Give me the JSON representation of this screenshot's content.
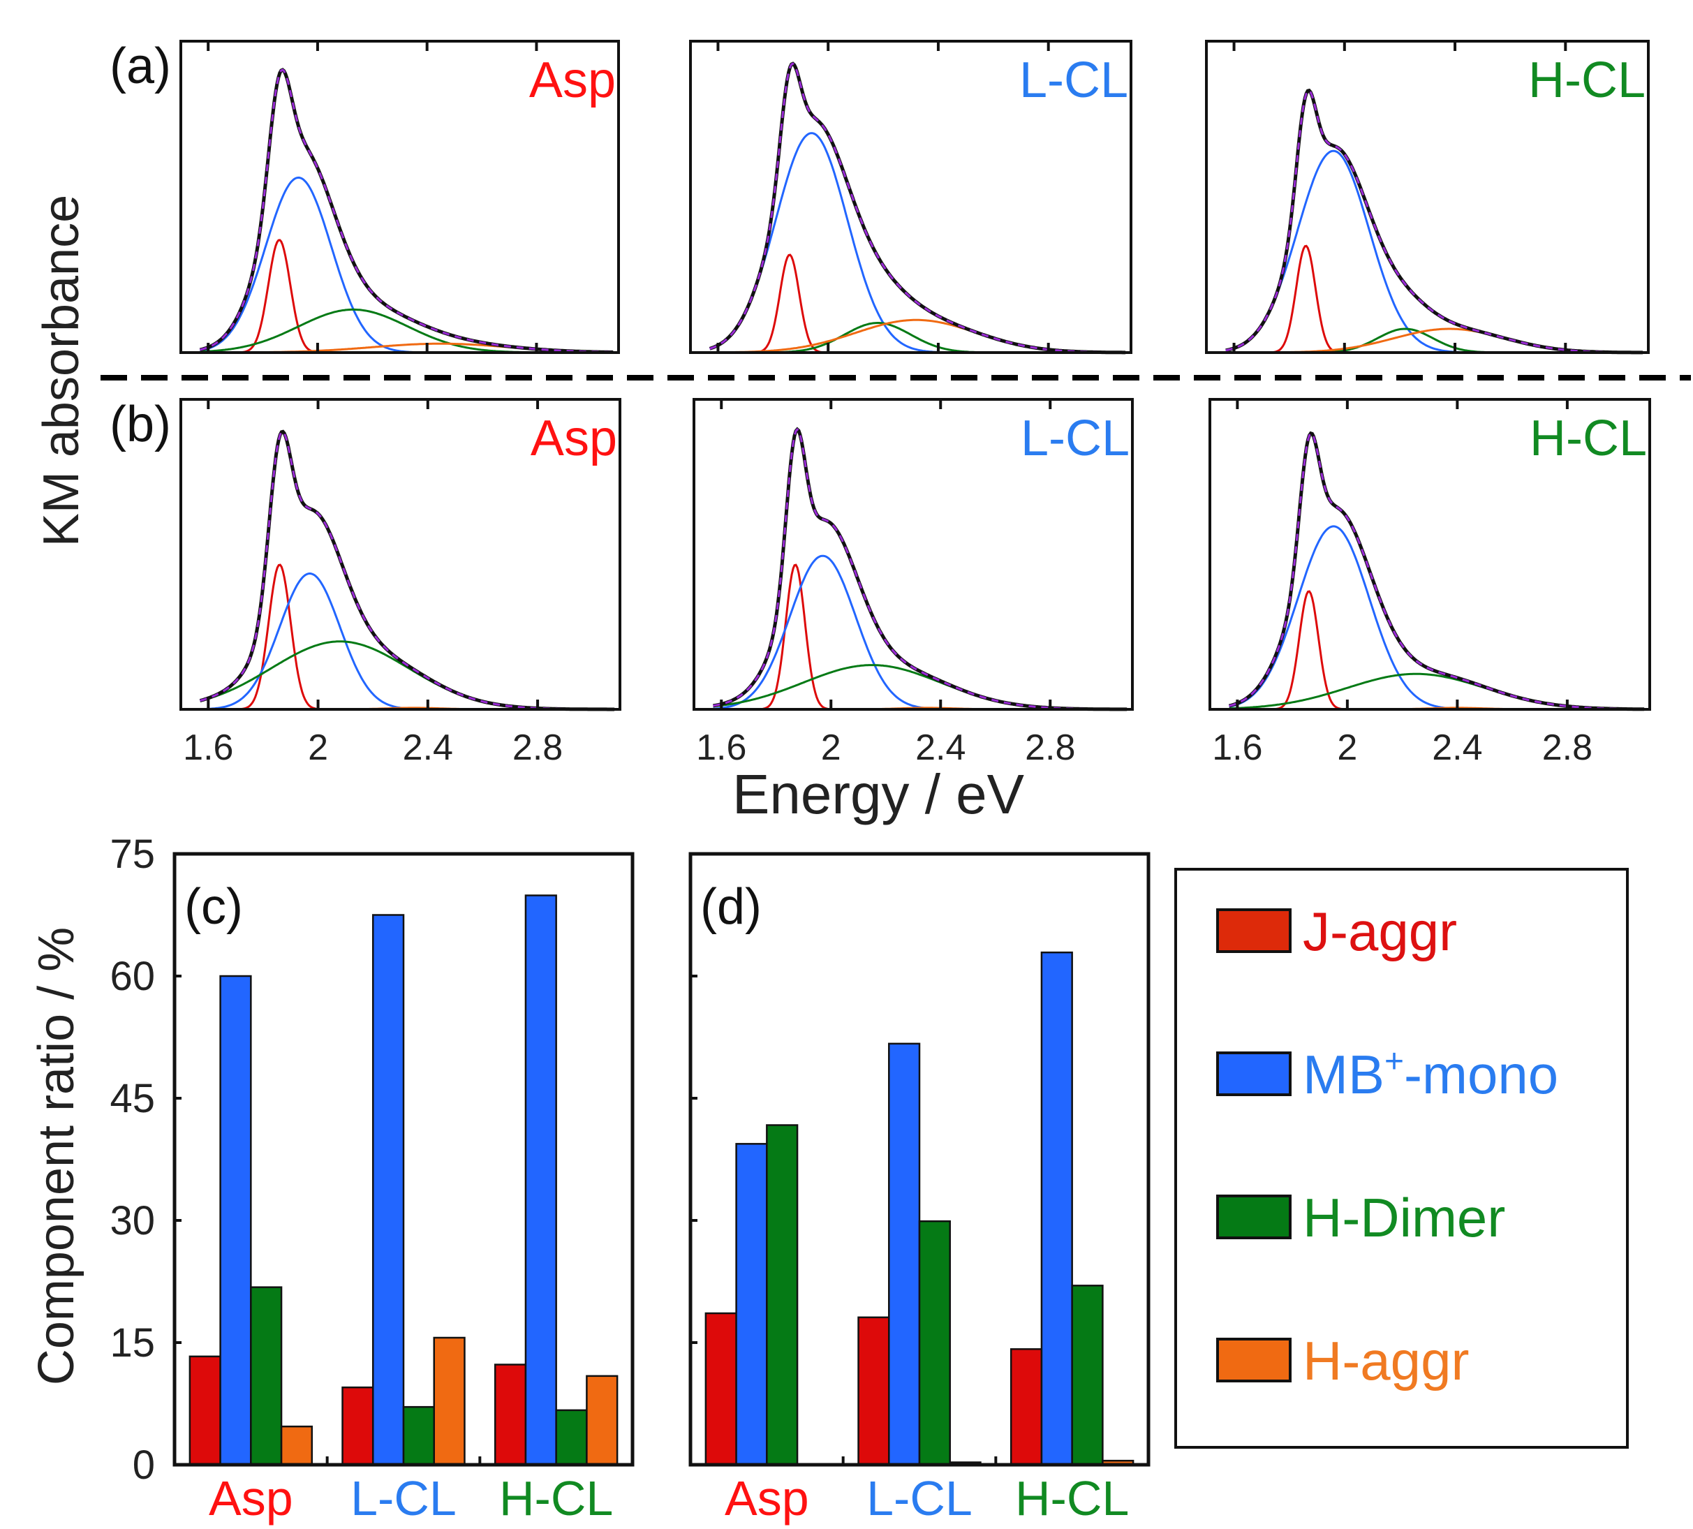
{
  "colors": {
    "j_aggr": "#dd0a0a",
    "mb_mono": "#2266ff",
    "h_dimer": "#057a15",
    "h_aggr": "#f06a12",
    "total": "#111111",
    "fit": "#9a2bd6"
  },
  "chart_data": [
    {
      "type": "line",
      "ylabel": "KM absorbance",
      "xlabel": "Energy / eV",
      "xlim": [
        1.5,
        3.1
      ],
      "xticks": [
        "1.6",
        "2",
        "2.4",
        "2.8"
      ],
      "ylim": [
        0,
        1.05
      ],
      "separator": "dashed",
      "panels": [
        {
          "label": "(a)",
          "sample": "Asp",
          "sample_color": "#ff1111",
          "components": [
            {
              "name": "J-aggr",
              "center": 1.86,
              "amp": 0.38,
              "sigma": 0.04
            },
            {
              "name": "MB+-mono",
              "center": 1.93,
              "amp": 0.59,
              "sigma": 0.12
            },
            {
              "name": "H-Dimer",
              "center": 2.13,
              "amp": 0.145,
              "sigma": 0.2
            },
            {
              "name": "H-aggr",
              "center": 2.45,
              "amp": 0.03,
              "sigma": 0.25
            }
          ]
        },
        {
          "label": "",
          "sample": "L-CL",
          "sample_color": "#2a7cf0",
          "components": [
            {
              "name": "J-aggr",
              "center": 1.86,
              "amp": 0.33,
              "sigma": 0.035
            },
            {
              "name": "MB+-mono",
              "center": 1.94,
              "amp": 0.74,
              "sigma": 0.13
            },
            {
              "name": "H-Dimer",
              "center": 2.18,
              "amp": 0.1,
              "sigma": 0.12
            },
            {
              "name": "H-aggr",
              "center": 2.32,
              "amp": 0.11,
              "sigma": 0.22
            }
          ]
        },
        {
          "label": "",
          "sample": "H-CL",
          "sample_color": "#118a22",
          "components": [
            {
              "name": "J-aggr",
              "center": 1.86,
              "amp": 0.36,
              "sigma": 0.035
            },
            {
              "name": "MB+-mono",
              "center": 1.96,
              "amp": 0.68,
              "sigma": 0.13
            },
            {
              "name": "H-Dimer",
              "center": 2.22,
              "amp": 0.08,
              "sigma": 0.1
            },
            {
              "name": "H-aggr",
              "center": 2.38,
              "amp": 0.08,
              "sigma": 0.2
            }
          ]
        },
        {
          "label": "(b)",
          "sample": "Asp",
          "sample_color": "#ff1111",
          "components": [
            {
              "name": "J-aggr",
              "center": 1.86,
              "amp": 0.49,
              "sigma": 0.04
            },
            {
              "name": "MB+-mono",
              "center": 1.97,
              "amp": 0.46,
              "sigma": 0.11
            },
            {
              "name": "H-Dimer",
              "center": 2.08,
              "amp": 0.23,
              "sigma": 0.25
            },
            {
              "name": "H-aggr",
              "center": 2.35,
              "amp": 0.005,
              "sigma": 0.1
            }
          ]
        },
        {
          "label": "",
          "sample": "L-CL",
          "sample_color": "#2a7cf0",
          "components": [
            {
              "name": "J-aggr",
              "center": 1.87,
              "amp": 0.49,
              "sigma": 0.035
            },
            {
              "name": "MB+-mono",
              "center": 1.97,
              "amp": 0.52,
              "sigma": 0.12
            },
            {
              "name": "H-Dimer",
              "center": 2.15,
              "amp": 0.15,
              "sigma": 0.25
            },
            {
              "name": "H-aggr",
              "center": 2.35,
              "amp": 0.005,
              "sigma": 0.1
            }
          ]
        },
        {
          "label": "",
          "sample": "H-CL",
          "sample_color": "#118a22",
          "components": [
            {
              "name": "J-aggr",
              "center": 1.86,
              "amp": 0.4,
              "sigma": 0.035
            },
            {
              "name": "MB+-mono",
              "center": 1.95,
              "amp": 0.62,
              "sigma": 0.13
            },
            {
              "name": "H-Dimer",
              "center": 2.25,
              "amp": 0.12,
              "sigma": 0.25
            },
            {
              "name": "H-aggr",
              "center": 2.4,
              "amp": 0.005,
              "sigma": 0.1
            }
          ]
        }
      ]
    },
    {
      "type": "bar",
      "label": "(c)",
      "ylabel": "Component ratio / %",
      "ylim": [
        0,
        75
      ],
      "yticks": [
        "0",
        "15",
        "30",
        "45",
        "60",
        "75"
      ],
      "categories": [
        "Asp",
        "L-CL",
        "H-CL"
      ],
      "category_colors": [
        "#ff1111",
        "#2a7cf0",
        "#118a22"
      ],
      "series": [
        {
          "name": "J-aggr",
          "values": [
            13.3,
            9.5,
            12.3
          ]
        },
        {
          "name": "MB+-mono",
          "values": [
            60.0,
            67.5,
            69.9
          ]
        },
        {
          "name": "H-Dimer",
          "values": [
            21.8,
            7.1,
            6.7
          ]
        },
        {
          "name": "H-aggr",
          "values": [
            4.7,
            15.6,
            10.9
          ]
        }
      ]
    },
    {
      "type": "bar",
      "label": "(d)",
      "ylim": [
        0,
        75
      ],
      "categories": [
        "Asp",
        "L-CL",
        "H-CL"
      ],
      "category_colors": [
        "#ff1111",
        "#2a7cf0",
        "#118a22"
      ],
      "series": [
        {
          "name": "J-aggr",
          "values": [
            18.6,
            18.1,
            14.2
          ]
        },
        {
          "name": "MB+-mono",
          "values": [
            39.4,
            51.7,
            62.9
          ]
        },
        {
          "name": "H-Dimer",
          "values": [
            41.7,
            29.9,
            22.0
          ]
        },
        {
          "name": "H-aggr",
          "values": [
            0.1,
            0.3,
            0.5
          ]
        }
      ]
    }
  ],
  "legend": {
    "placement": "right",
    "items": [
      {
        "label": "J-aggr",
        "color": "#dd2a0a",
        "text_color": "#dd1111"
      },
      {
        "label": "MB",
        "sup": "+",
        "rest": "-mono",
        "color": "#2266ff",
        "text_color": "#2a7cf0"
      },
      {
        "label": "H-Dimer",
        "color": "#057a15",
        "text_color": "#118a22"
      },
      {
        "label": "H-aggr",
        "color": "#f06a12",
        "text_color": "#f07a22"
      }
    ]
  }
}
